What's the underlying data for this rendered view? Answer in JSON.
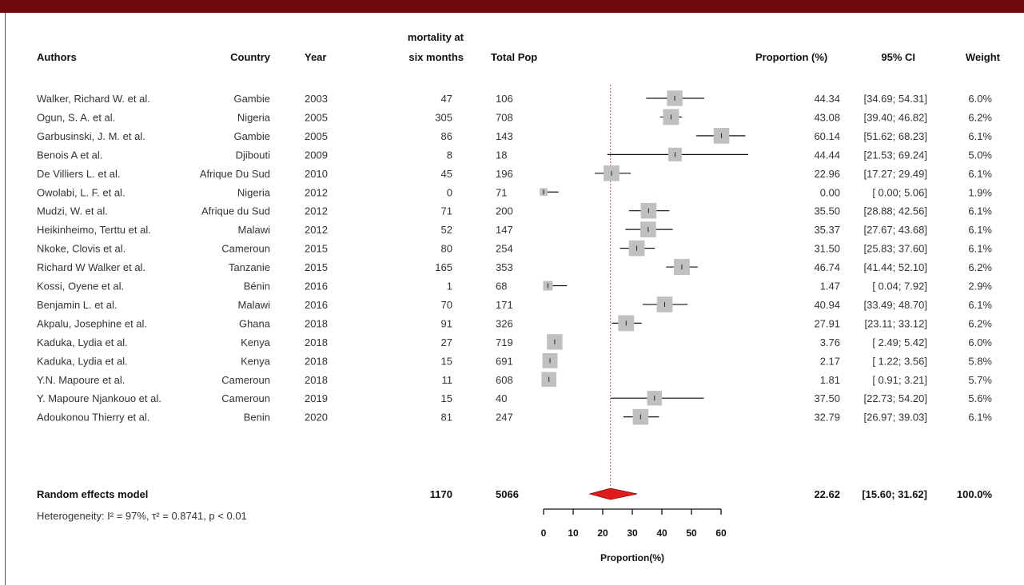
{
  "colors": {
    "top_bar": "#6e0a0e",
    "box": "#c0c0c0",
    "diamond": "#e01b1b",
    "ref_line": "#b0506e"
  },
  "headers": {
    "authors": "Authors",
    "country": "Country",
    "year": "Year",
    "events_line1": "mortality at",
    "events_line2": "six months",
    "total": "Total Pop",
    "proportion": "Proportion (%)",
    "ci": "95% CI",
    "weight": "Weight"
  },
  "summary": {
    "label": "Random effects model",
    "events": "1170",
    "total": "5066",
    "est": "22.62",
    "ci": "[15.60; 31.62]",
    "weight": "100.0%",
    "heterogeneity": "Heterogeneity: I² = 97%, τ² = 0.8741, p < 0.01"
  },
  "chart_data": {
    "type": "forest",
    "xlabel": "Proportion(%)",
    "xlim": [
      0,
      60
    ],
    "ticks": [
      "0",
      "10",
      "20",
      "30",
      "40",
      "50",
      "60"
    ],
    "pooled": {
      "est": 22.62,
      "lo": 15.6,
      "hi": 31.62
    },
    "studies": [
      {
        "author": "Walker, Richard W. et al.",
        "country": "Gambie",
        "year": "2003",
        "events": "47",
        "total": "106",
        "est": 44.34,
        "lo": 34.69,
        "hi": 54.31,
        "est_txt": "44.34",
        "ci_txt": "[34.69; 54.31]",
        "weight": "6.0%",
        "w": 6.0
      },
      {
        "author": "Ogun, S. A. et al.",
        "country": "Nigeria",
        "year": "2005",
        "events": "305",
        "total": "708",
        "est": 43.08,
        "lo": 39.4,
        "hi": 46.82,
        "est_txt": "43.08",
        "ci_txt": "[39.40; 46.82]",
        "weight": "6.2%",
        "w": 6.2
      },
      {
        "author": "Garbusinski, J. M. et al.",
        "country": "Gambie",
        "year": "2005",
        "events": "86",
        "total": "143",
        "est": 60.14,
        "lo": 51.62,
        "hi": 68.23,
        "est_txt": "60.14",
        "ci_txt": "[51.62; 68.23]",
        "weight": "6.1%",
        "w": 6.1
      },
      {
        "author": "Benois A et al.",
        "country": "Djibouti",
        "year": "2009",
        "events": "8",
        "total": "18",
        "est": 44.44,
        "lo": 21.53,
        "hi": 69.24,
        "est_txt": "44.44",
        "ci_txt": "[21.53; 69.24]",
        "weight": "5.0%",
        "w": 5.0
      },
      {
        "author": "De Villiers L. et al.",
        "country": "Afrique Du Sud",
        "year": "2010",
        "events": "45",
        "total": "196",
        "est": 22.96,
        "lo": 17.27,
        "hi": 29.49,
        "est_txt": "22.96",
        "ci_txt": "[17.27; 29.49]",
        "weight": "6.1%",
        "w": 6.1
      },
      {
        "author": "Owolabi, L. F. et al.",
        "country": "Nigeria",
        "year": "2012",
        "events": "0",
        "total": "71",
        "est": 0.0,
        "lo": 0.0,
        "hi": 5.06,
        "est_txt": "0.00",
        "ci_txt": "[ 0.00; 5.06]",
        "weight": "1.9%",
        "w": 1.9
      },
      {
        "author": "Mudzi, W. et al.",
        "country": "Afrique du Sud",
        "year": "2012",
        "events": "71",
        "total": "200",
        "est": 35.5,
        "lo": 28.88,
        "hi": 42.56,
        "est_txt": "35.50",
        "ci_txt": "[28.88; 42.56]",
        "weight": "6.1%",
        "w": 6.1
      },
      {
        "author": "Heikinheimo, Terttu et al.",
        "country": "Malawi",
        "year": "2012",
        "events": "52",
        "total": "147",
        "est": 35.37,
        "lo": 27.67,
        "hi": 43.68,
        "est_txt": "35.37",
        "ci_txt": "[27.67; 43.68]",
        "weight": "6.1%",
        "w": 6.1
      },
      {
        "author": "Nkoke, Clovis et al.",
        "country": "Cameroun",
        "year": "2015",
        "events": "80",
        "total": "254",
        "est": 31.5,
        "lo": 25.83,
        "hi": 37.6,
        "est_txt": "31.50",
        "ci_txt": "[25.83; 37.60]",
        "weight": "6.1%",
        "w": 6.1
      },
      {
        "author": "Richard W Walker et al.",
        "country": "Tanzanie",
        "year": "2015",
        "events": "165",
        "total": "353",
        "est": 46.74,
        "lo": 41.44,
        "hi": 52.1,
        "est_txt": "46.74",
        "ci_txt": "[41.44; 52.10]",
        "weight": "6.2%",
        "w": 6.2
      },
      {
        "author": "Kossi, Oyene et al.",
        "country": "Bénin",
        "year": "2016",
        "events": "1",
        "total": "68",
        "est": 1.47,
        "lo": 0.04,
        "hi": 7.92,
        "est_txt": "1.47",
        "ci_txt": "[ 0.04; 7.92]",
        "weight": "2.9%",
        "w": 2.9
      },
      {
        "author": "Benjamin L. et al.",
        "country": "Malawi",
        "year": "2016",
        "events": "70",
        "total": "171",
        "est": 40.94,
        "lo": 33.49,
        "hi": 48.7,
        "est_txt": "40.94",
        "ci_txt": "[33.49; 48.70]",
        "weight": "6.1%",
        "w": 6.1
      },
      {
        "author": "Akpalu, Josephine et al.",
        "country": "Ghana",
        "year": "2018",
        "events": "91",
        "total": "326",
        "est": 27.91,
        "lo": 23.11,
        "hi": 33.12,
        "est_txt": "27.91",
        "ci_txt": "[23.11; 33.12]",
        "weight": "6.2%",
        "w": 6.2
      },
      {
        "author": "Kaduka, Lydia et al.",
        "country": "Kenya",
        "year": "2018",
        "events": "27",
        "total": "719",
        "est": 3.76,
        "lo": 2.49,
        "hi": 5.42,
        "est_txt": "3.76",
        "ci_txt": "[ 2.49; 5.42]",
        "weight": "6.0%",
        "w": 6.0
      },
      {
        "author": "Kaduka, Lydia et al.",
        "country": "Kenya",
        "year": "2018",
        "events": "15",
        "total": "691",
        "est": 2.17,
        "lo": 1.22,
        "hi": 3.56,
        "est_txt": "2.17",
        "ci_txt": "[ 1.22; 3.56]",
        "weight": "5.8%",
        "w": 5.8
      },
      {
        "author": "Y.N. Mapoure et al.",
        "country": "Cameroun",
        "year": "2018",
        "events": "11",
        "total": "608",
        "est": 1.81,
        "lo": 0.91,
        "hi": 3.21,
        "est_txt": "1.81",
        "ci_txt": "[ 0.91; 3.21]",
        "weight": "5.7%",
        "w": 5.7
      },
      {
        "author": "Y. Mapoure Njankouo et al.",
        "country": "Cameroun",
        "year": "2019",
        "events": "15",
        "total": "40",
        "est": 37.5,
        "lo": 22.73,
        "hi": 54.2,
        "est_txt": "37.50",
        "ci_txt": "[22.73; 54.20]",
        "weight": "5.6%",
        "w": 5.6
      },
      {
        "author": "Adoukonou Thierry et al.",
        "country": "Benin",
        "year": "2020",
        "events": "81",
        "total": "247",
        "est": 32.79,
        "lo": 26.97,
        "hi": 39.03,
        "est_txt": "32.79",
        "ci_txt": "[26.97; 39.03]",
        "weight": "6.1%",
        "w": 6.1
      }
    ]
  }
}
